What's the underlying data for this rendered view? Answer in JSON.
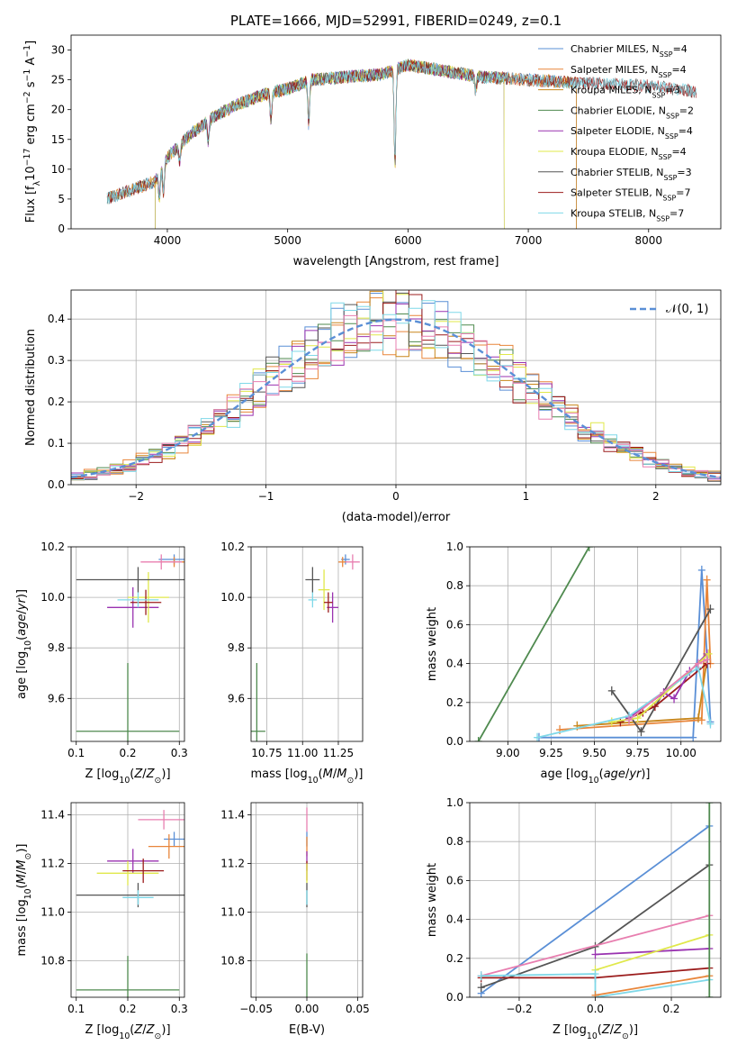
{
  "figure_title": "PLATE=1666, MJD=52991, FIBERID=0249, z=0.1",
  "colors": {
    "Chabrier MILES": "#5a8fd6",
    "Salpeter MILES": "#e8853a",
    "Kroupa MILES": "#c8861a",
    "Chabrier ELODIE": "#4f8a4f",
    "Salpeter ELODIE": "#9932b0",
    "Kroupa ELODIE": "#e0e84a",
    "Chabrier STELIB": "#555555",
    "Salpeter STELIB": "#9b1c1c",
    "Kroupa STELIB": "#7fd8e8",
    "Pink": "#e87fb0",
    "Normal": "#5a8fd6"
  },
  "chart_data": [
    {
      "type": "line",
      "id": "spectrum",
      "xlabel": "wavelength [Angstrom, rest frame]",
      "ylabel": "Flux [f_λ10^-17 erg cm^-2 s^-1 A^-1]",
      "xlim": [
        3200,
        8600
      ],
      "ylim": [
        0,
        32.5
      ],
      "xticks": [
        4000,
        5000,
        6000,
        7000,
        8000
      ],
      "yticks": [
        0,
        5,
        10,
        15,
        20,
        25,
        30
      ],
      "grid": false,
      "legend_position": "top-right",
      "continuum_knots": [
        [
          3500,
          5
        ],
        [
          3700,
          6.5
        ],
        [
          3900,
          8
        ],
        [
          4000,
          12
        ],
        [
          4200,
          16
        ],
        [
          4400,
          19
        ],
        [
          4600,
          21
        ],
        [
          4800,
          22.5
        ],
        [
          5000,
          23.5
        ],
        [
          5200,
          25
        ],
        [
          5500,
          25.5
        ],
        [
          5800,
          26
        ],
        [
          6000,
          27.5
        ],
        [
          6300,
          26.5
        ],
        [
          6600,
          25.5
        ],
        [
          7000,
          25
        ],
        [
          7400,
          24.5
        ],
        [
          8000,
          24
        ],
        [
          8400,
          23
        ]
      ],
      "series": [
        {
          "name": "Chabrier MILES, N_SSP=4",
          "xmin": 3500,
          "xmax": 7400
        },
        {
          "name": "Salpeter MILES, N_SSP=4",
          "xmin": 3500,
          "xmax": 7400
        },
        {
          "name": "Kroupa MILES, N_SSP=3",
          "xmin": 3500,
          "xmax": 7400
        },
        {
          "name": "Chabrier ELODIE, N_SSP=2",
          "xmin": 3900,
          "xmax": 6800
        },
        {
          "name": "Salpeter ELODIE, N_SSP=4",
          "xmin": 3900,
          "xmax": 6800
        },
        {
          "name": "Kroupa ELODIE, N_SSP=4",
          "xmin": 3900,
          "xmax": 6800
        },
        {
          "name": "Chabrier STELIB, N_SSP=3",
          "xmin": 3500,
          "xmax": 8400
        },
        {
          "name": "Salpeter STELIB, N_SSP=7",
          "xmin": 3500,
          "xmax": 8400
        },
        {
          "name": "Kroupa STELIB, N_SSP=7",
          "xmin": 3500,
          "xmax": 8400
        }
      ]
    },
    {
      "type": "histogram",
      "id": "residuals",
      "xlabel": "(data-model)/error",
      "ylabel": "Normed distribution",
      "xlim": [
        -2.5,
        2.5
      ],
      "ylim": [
        0,
        0.47
      ],
      "xticks": [
        -2,
        -1,
        0,
        1,
        2
      ],
      "yticks": [
        0.0,
        0.1,
        0.2,
        0.3,
        0.4
      ],
      "grid": true,
      "legend_position": "top-right",
      "legend": [
        "𝒩(0, 1)"
      ],
      "bin_width": 0.1
    },
    {
      "type": "scatter",
      "id": "age_vs_Z",
      "xlabel": "Z [log10(Z/Z⊙)]",
      "ylabel": "age [log10(age/yr)]",
      "xlim": [
        0.09,
        0.31
      ],
      "ylim": [
        9.43,
        10.2
      ],
      "xticks": [
        0.1,
        0.2,
        0.3
      ],
      "yticks": [
        9.6,
        9.8,
        10.0,
        10.2
      ],
      "grid": true,
      "points": [
        {
          "color": "Chabrier MILES",
          "x": 0.29,
          "xerr": 0.03,
          "y": 10.15,
          "yerr": 0.02
        },
        {
          "color": "Salpeter MILES",
          "x": 0.29,
          "xerr": 0.03,
          "y": 10.14,
          "yerr": 0.02
        },
        {
          "color": "Pink",
          "x": 0.265,
          "xerr": 0.04,
          "y": 10.14,
          "yerr": 0.03
        },
        {
          "color": "Chabrier ELODIE",
          "x": 0.2,
          "xerr": 0.1,
          "y": 9.47,
          "yerr": 0.27
        },
        {
          "color": "Salpeter ELODIE",
          "x": 0.21,
          "xerr": 0.05,
          "y": 9.96,
          "yerr": 0.08
        },
        {
          "color": "Kroupa ELODIE",
          "x": 0.24,
          "xerr": 0.04,
          "y": 10.0,
          "yerr": 0.1
        },
        {
          "color": "Chabrier STELIB",
          "x": 0.22,
          "xerr": 0.12,
          "y": 10.07,
          "yerr": 0.05
        },
        {
          "color": "Salpeter STELIB",
          "x": 0.235,
          "xerr": 0.03,
          "y": 9.98,
          "yerr": 0.05
        },
        {
          "color": "Kroupa STELIB",
          "x": 0.22,
          "xerr": 0.04,
          "y": 9.99,
          "yerr": 0.03
        }
      ]
    },
    {
      "type": "scatter",
      "id": "age_vs_mass",
      "xlabel": "mass [log10(M/M⊙)]",
      "ylabel": "",
      "xlim": [
        10.64,
        11.42
      ],
      "ylim": [
        9.43,
        10.2
      ],
      "xticks": [
        10.75,
        11.0,
        11.25
      ],
      "tick_labels": [
        "10.75",
        "11.00",
        "11.25"
      ],
      "yticks": [
        9.6,
        9.8,
        10.0,
        10.2
      ],
      "grid": true,
      "points": [
        {
          "color": "Chabrier MILES",
          "x": 11.3,
          "xerr": 0.03,
          "y": 10.15,
          "yerr": 0.02
        },
        {
          "color": "Salpeter MILES",
          "x": 11.28,
          "xerr": 0.03,
          "y": 10.14,
          "yerr": 0.02
        },
        {
          "color": "Pink",
          "x": 11.35,
          "xerr": 0.05,
          "y": 10.14,
          "yerr": 0.03
        },
        {
          "color": "Chabrier ELODIE",
          "x": 10.68,
          "xerr": 0.06,
          "y": 9.47,
          "yerr": 0.27
        },
        {
          "color": "Salpeter ELODIE",
          "x": 11.21,
          "xerr": 0.04,
          "y": 9.96,
          "yerr": 0.06
        },
        {
          "color": "Kroupa ELODIE",
          "x": 11.15,
          "xerr": 0.04,
          "y": 10.03,
          "yerr": 0.08
        },
        {
          "color": "Chabrier STELIB",
          "x": 11.07,
          "xerr": 0.05,
          "y": 10.07,
          "yerr": 0.05
        },
        {
          "color": "Salpeter STELIB",
          "x": 11.18,
          "xerr": 0.03,
          "y": 9.98,
          "yerr": 0.04
        },
        {
          "color": "Kroupa STELIB",
          "x": 11.07,
          "xerr": 0.03,
          "y": 9.99,
          "yerr": 0.03
        }
      ]
    },
    {
      "type": "line",
      "id": "weight_vs_age",
      "xlabel": "age [log10(age/yr)]",
      "ylabel": "mass weight",
      "xlim": [
        8.78,
        10.23
      ],
      "ylim": [
        0,
        1.0
      ],
      "xticks": [
        9.0,
        9.25,
        9.5,
        9.75,
        10.0
      ],
      "tick_labels": [
        "9.00",
        "9.25",
        "9.50",
        "9.75",
        "10.00"
      ],
      "yticks": [
        0.0,
        0.2,
        0.4,
        0.6,
        0.8,
        1.0
      ],
      "grid": true,
      "series": [
        {
          "color": "Chabrier ELODIE",
          "x": [
            8.83,
            9.47
          ],
          "y": [
            0.0,
            1.0
          ]
        },
        {
          "color": "Chabrier MILES",
          "x": [
            9.18,
            10.07,
            10.12,
            10.15,
            10.17
          ],
          "y": [
            0.02,
            0.02,
            0.88,
            0.45,
            0.1
          ]
        },
        {
          "color": "Salpeter MILES",
          "x": [
            9.3,
            10.12,
            10.15,
            10.17
          ],
          "y": [
            0.06,
            0.11,
            0.83,
            0.4
          ]
        },
        {
          "color": "Kroupa MILES",
          "x": [
            9.4,
            10.1,
            10.15
          ],
          "y": [
            0.08,
            0.12,
            0.42
          ]
        },
        {
          "color": "Chabrier STELIB",
          "x": [
            9.6,
            9.77,
            10.17
          ],
          "y": [
            0.26,
            0.05,
            0.68
          ]
        },
        {
          "color": "Salpeter STELIB",
          "x": [
            9.65,
            9.78,
            9.85,
            10.15
          ],
          "y": [
            0.1,
            0.15,
            0.18,
            0.4
          ]
        },
        {
          "color": "Salpeter ELODIE",
          "x": [
            9.7,
            9.9,
            9.96,
            10.05,
            10.15
          ],
          "y": [
            0.12,
            0.25,
            0.22,
            0.36,
            0.45
          ]
        },
        {
          "color": "Kroupa ELODIE",
          "x": [
            9.6,
            9.75,
            10.16
          ],
          "y": [
            0.1,
            0.12,
            0.45
          ]
        },
        {
          "color": "Kroupa STELIB",
          "x": [
            9.17,
            9.7,
            10.1,
            10.17
          ],
          "y": [
            0.02,
            0.13,
            0.38,
            0.09
          ]
        },
        {
          "color": "Pink",
          "x": [
            9.7,
            10.1,
            10.15
          ],
          "y": [
            0.11,
            0.4,
            0.42
          ]
        }
      ]
    },
    {
      "type": "scatter",
      "id": "mass_vs_Z",
      "xlabel": "Z [log10(Z/Z⊙)]",
      "ylabel": "mass [log10(M/M⊙)]",
      "xlim": [
        0.09,
        0.31
      ],
      "ylim": [
        10.65,
        11.45
      ],
      "xticks": [
        0.1,
        0.2,
        0.3
      ],
      "yticks": [
        10.8,
        11.0,
        11.2,
        11.4
      ],
      "grid": true,
      "points": [
        {
          "color": "Chabrier MILES",
          "x": 0.29,
          "xerr": 0.02,
          "y": 11.3,
          "yerr": 0.03
        },
        {
          "color": "Salpeter MILES",
          "x": 0.28,
          "xerr": 0.04,
          "y": 11.27,
          "yerr": 0.05
        },
        {
          "color": "Pink",
          "x": 0.27,
          "xerr": 0.05,
          "y": 11.38,
          "yerr": 0.04
        },
        {
          "color": "Chabrier ELODIE",
          "x": 0.2,
          "xerr": 0.1,
          "y": 10.68,
          "yerr": 0.14
        },
        {
          "color": "Salpeter ELODIE",
          "x": 0.21,
          "xerr": 0.05,
          "y": 11.21,
          "yerr": 0.05
        },
        {
          "color": "Kroupa ELODIE",
          "x": 0.2,
          "xerr": 0.06,
          "y": 11.16,
          "yerr": 0.05
        },
        {
          "color": "Chabrier STELIB",
          "x": 0.22,
          "xerr": 0.12,
          "y": 11.07,
          "yerr": 0.05
        },
        {
          "color": "Salpeter STELIB",
          "x": 0.23,
          "xerr": 0.04,
          "y": 11.17,
          "yerr": 0.05
        },
        {
          "color": "Kroupa STELIB",
          "x": 0.22,
          "xerr": 0.03,
          "y": 11.06,
          "yerr": 0.03
        }
      ]
    },
    {
      "type": "scatter",
      "id": "mass_vs_ebv",
      "xlabel": "E(B-V)",
      "ylabel": "",
      "xlim": [
        -0.055,
        0.055
      ],
      "ylim": [
        10.65,
        11.45
      ],
      "xticks": [
        -0.05,
        0.0,
        0.05
      ],
      "tick_labels": [
        "−0.05",
        "0.00",
        "0.05"
      ],
      "yticks": [
        10.8,
        11.0,
        11.2,
        11.4
      ],
      "grid": true,
      "points": [
        {
          "color": "Pink",
          "x": 0.0,
          "y": 11.38,
          "yerr": 0.05
        },
        {
          "color": "Chabrier MILES",
          "x": 0.0,
          "y": 11.3,
          "yerr": 0.03
        },
        {
          "color": "Salpeter MILES",
          "x": 0.0,
          "y": 11.27,
          "yerr": 0.04
        },
        {
          "color": "Salpeter ELODIE",
          "x": 0.0,
          "y": 11.21,
          "yerr": 0.04
        },
        {
          "color": "Salpeter STELIB",
          "x": 0.0,
          "y": 11.17,
          "yerr": 0.04
        },
        {
          "color": "Kroupa ELODIE",
          "x": 0.0,
          "y": 11.16,
          "yerr": 0.04
        },
        {
          "color": "Chabrier STELIB",
          "x": 0.0,
          "y": 11.07,
          "yerr": 0.05
        },
        {
          "color": "Kroupa STELIB",
          "x": 0.0,
          "y": 11.06,
          "yerr": 0.03
        },
        {
          "color": "Chabrier ELODIE",
          "x": 0.0,
          "y": 10.72,
          "yerr": 0.11
        }
      ]
    },
    {
      "type": "line",
      "id": "weight_vs_Z",
      "xlabel": "Z [log10(Z/Z⊙)]",
      "ylabel": "mass weight",
      "xlim": [
        -0.33,
        0.33
      ],
      "ylim": [
        0,
        1.0
      ],
      "xticks": [
        -0.2,
        0.0,
        0.2
      ],
      "tick_labels": [
        "−0.2",
        "0.0",
        "0.2"
      ],
      "yticks": [
        0.0,
        0.2,
        0.4,
        0.6,
        0.8,
        1.0
      ],
      "grid": true,
      "series": [
        {
          "color": "Chabrier MILES",
          "x": [
            -0.3,
            0.3
          ],
          "y": [
            0.02,
            0.88
          ]
        },
        {
          "color": "Chabrier STELIB",
          "x": [
            -0.3,
            0.0,
            0.3
          ],
          "y": [
            0.05,
            0.26,
            0.68
          ]
        },
        {
          "color": "Pink",
          "x": [
            -0.3,
            0.3
          ],
          "y": [
            0.11,
            0.42
          ]
        },
        {
          "color": "Salpeter ELODIE",
          "x": [
            0.0,
            0.3
          ],
          "y": [
            0.22,
            0.25
          ]
        },
        {
          "color": "Kroupa ELODIE",
          "x": [
            0.0,
            0.3
          ],
          "y": [
            0.14,
            0.32
          ]
        },
        {
          "color": "Salpeter STELIB",
          "x": [
            -0.3,
            0.0,
            0.3
          ],
          "y": [
            0.1,
            0.1,
            0.15
          ]
        },
        {
          "color": "Kroupa STELIB",
          "x": [
            -0.3,
            0.0,
            0.0,
            0.3
          ],
          "y": [
            0.11,
            0.12,
            0.0,
            0.09
          ]
        },
        {
          "color": "Salpeter MILES",
          "x": [
            0.0,
            0.3
          ],
          "y": [
            0.01,
            0.11
          ]
        },
        {
          "color": "Chabrier ELODIE",
          "x": [
            0.3,
            0.3
          ],
          "y": [
            0.0,
            1.0
          ]
        }
      ]
    }
  ]
}
